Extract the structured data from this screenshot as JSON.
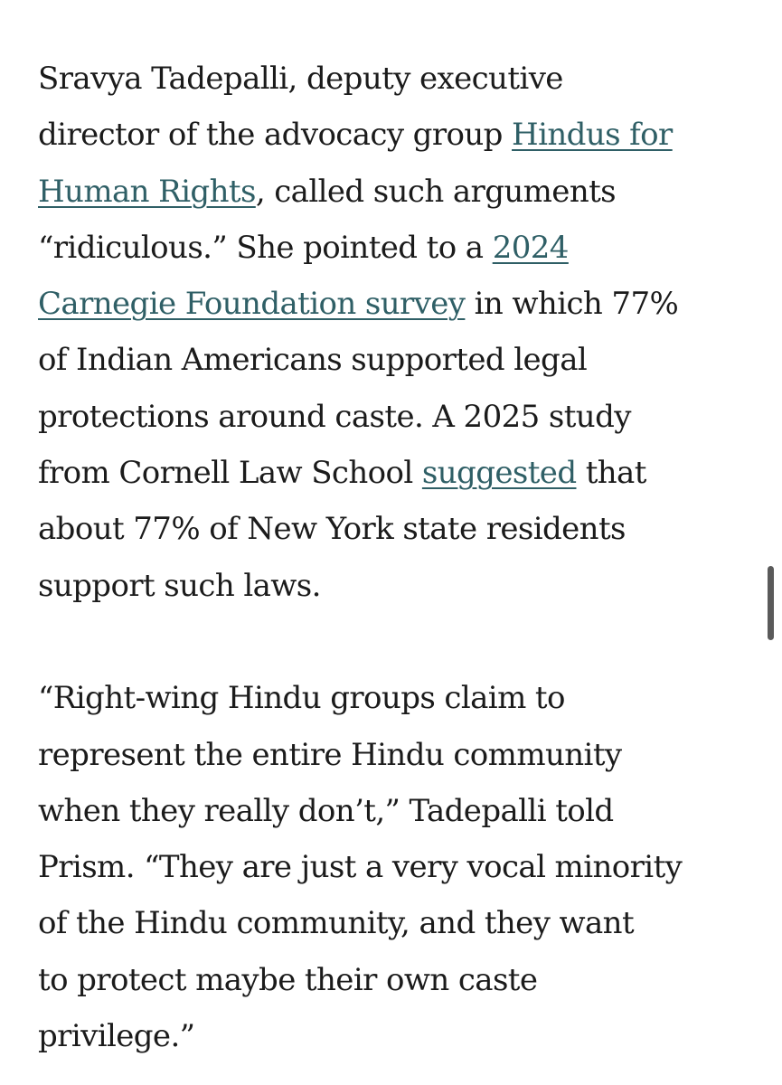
{
  "article": {
    "paragraph1": {
      "line1": "Sravya Tadepalli, deputy executive",
      "line2_text": "director of the advocacy group ",
      "link_hindus_line1": "Hindus for",
      "link_hindus_line2": "Human Rights",
      "line3_text": ", called such arguments",
      "line4_text": "“ridiculous.” She pointed to a ",
      "link_carnegie_line1": "2024",
      "link_carnegie_line2": "Carnegie Foundation survey",
      "line5_text": " in which 77%",
      "line6": "of Indian Americans supported legal",
      "line7": "protections around caste. A 2025 study",
      "line8_text": "from Cornell Law School ",
      "link_suggested": "suggested",
      "line8_after": " that",
      "line9": "about 77% of New York state residents",
      "line10": "support such laws."
    },
    "paragraph2": {
      "line1": "“Right-wing Hindu groups claim to",
      "line2": "represent the entire Hindu community",
      "line3": "when they really don’t,” Tadepalli told",
      "line4": "Prism. “They are just a very vocal minority",
      "line5": "of the Hindu community, and they want",
      "line6": "to protect maybe their own caste",
      "line7": "privilege.”"
    }
  },
  "colors": {
    "text": "#1b1b1b",
    "link": "#2f5f66",
    "scrollbar": "#5a5a5a",
    "background": "#ffffff"
  }
}
